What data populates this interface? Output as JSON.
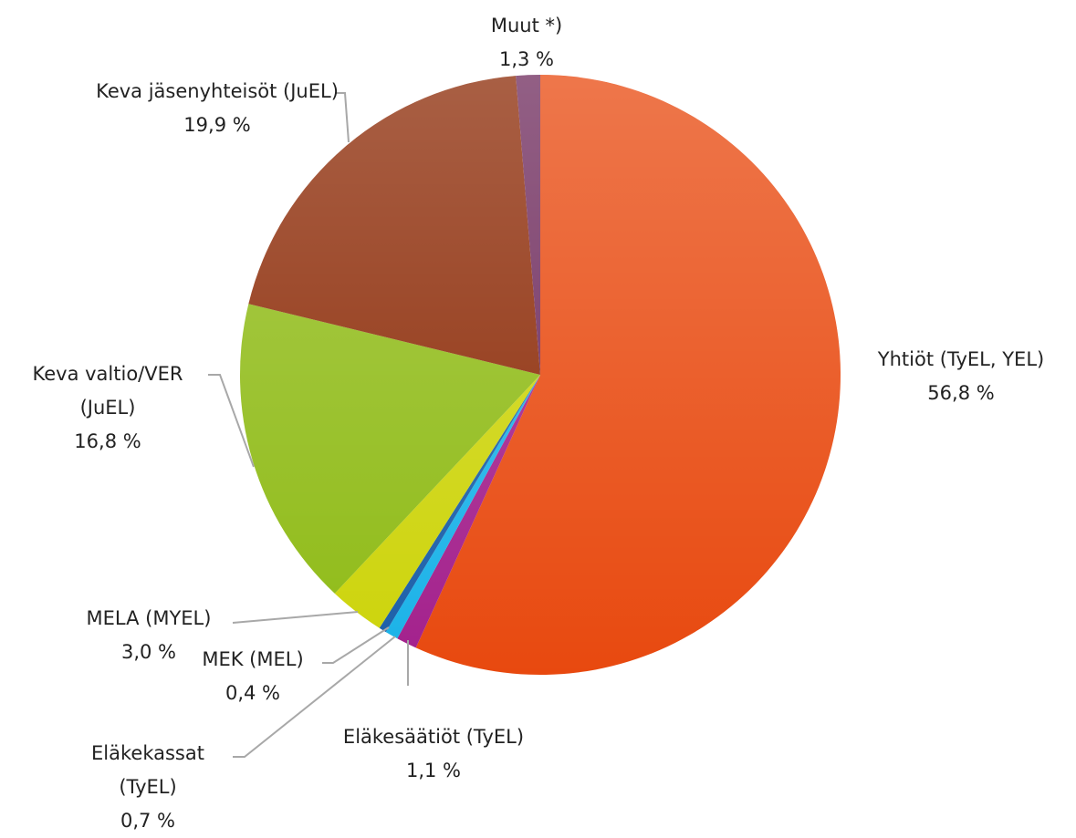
{
  "chart_data": {
    "type": "pie",
    "categories": [
      "Yhtiöt (TyEL, YEL)",
      "Eläkesäätiöt (TyEL)",
      "Eläkekassat (TyEL)",
      "MEK (MEL)",
      "MELA (MYEL)",
      "Keva valtio/VER (JuEL)",
      "Keva jäsenyhteisöt (JuEL)",
      "Muut *)"
    ],
    "values": [
      56.8,
      1.1,
      0.7,
      0.4,
      3.0,
      16.8,
      19.9,
      1.3
    ],
    "value_labels": [
      "56,8 %",
      "1,1 %",
      "0,7 %",
      "0,4 %",
      "3,0 %",
      "16,8 %",
      "19,9 %",
      "1,3 %"
    ],
    "colors": [
      "#e8490f",
      "#a3208c",
      "#1ab2e8",
      "#1a5ea8",
      "#cdd40a",
      "#8fbb16",
      "#8c2a06",
      "#6e2a5c"
    ]
  }
}
